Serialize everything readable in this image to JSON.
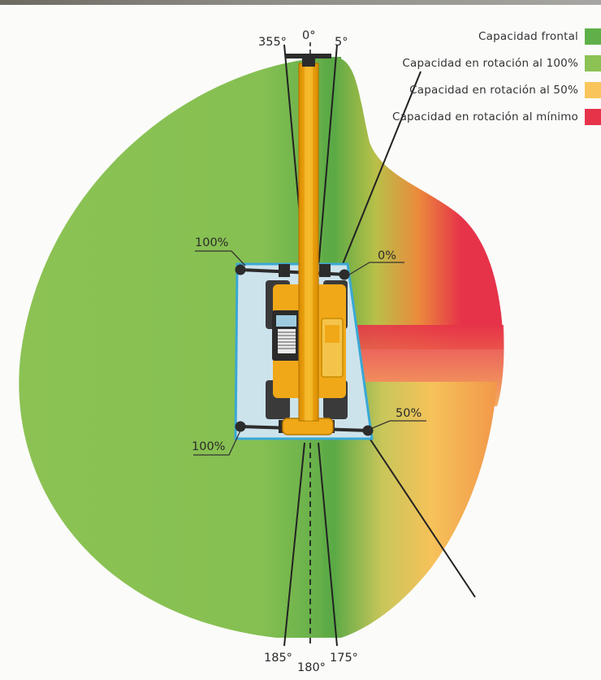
{
  "legend": {
    "items": [
      {
        "label": "Capacidad frontal",
        "color": "#5fb048"
      },
      {
        "label": "Capacidad en rotación al 100%",
        "color": "#8cc254"
      },
      {
        "label": "Capacidad en rotación al 50%",
        "color": "#f9c55a"
      },
      {
        "label": "Capacidad en rotación al mínimo",
        "color": "#e63349"
      }
    ]
  },
  "angles": {
    "a355": "355°",
    "a0": "0°",
    "a5": "5°",
    "a185": "185°",
    "a180": "180°",
    "a175": "175°"
  },
  "percent_labels": {
    "top_left": "100%",
    "bottom_left": "100%",
    "top_right": "0%",
    "bottom_right": "50%"
  }
}
